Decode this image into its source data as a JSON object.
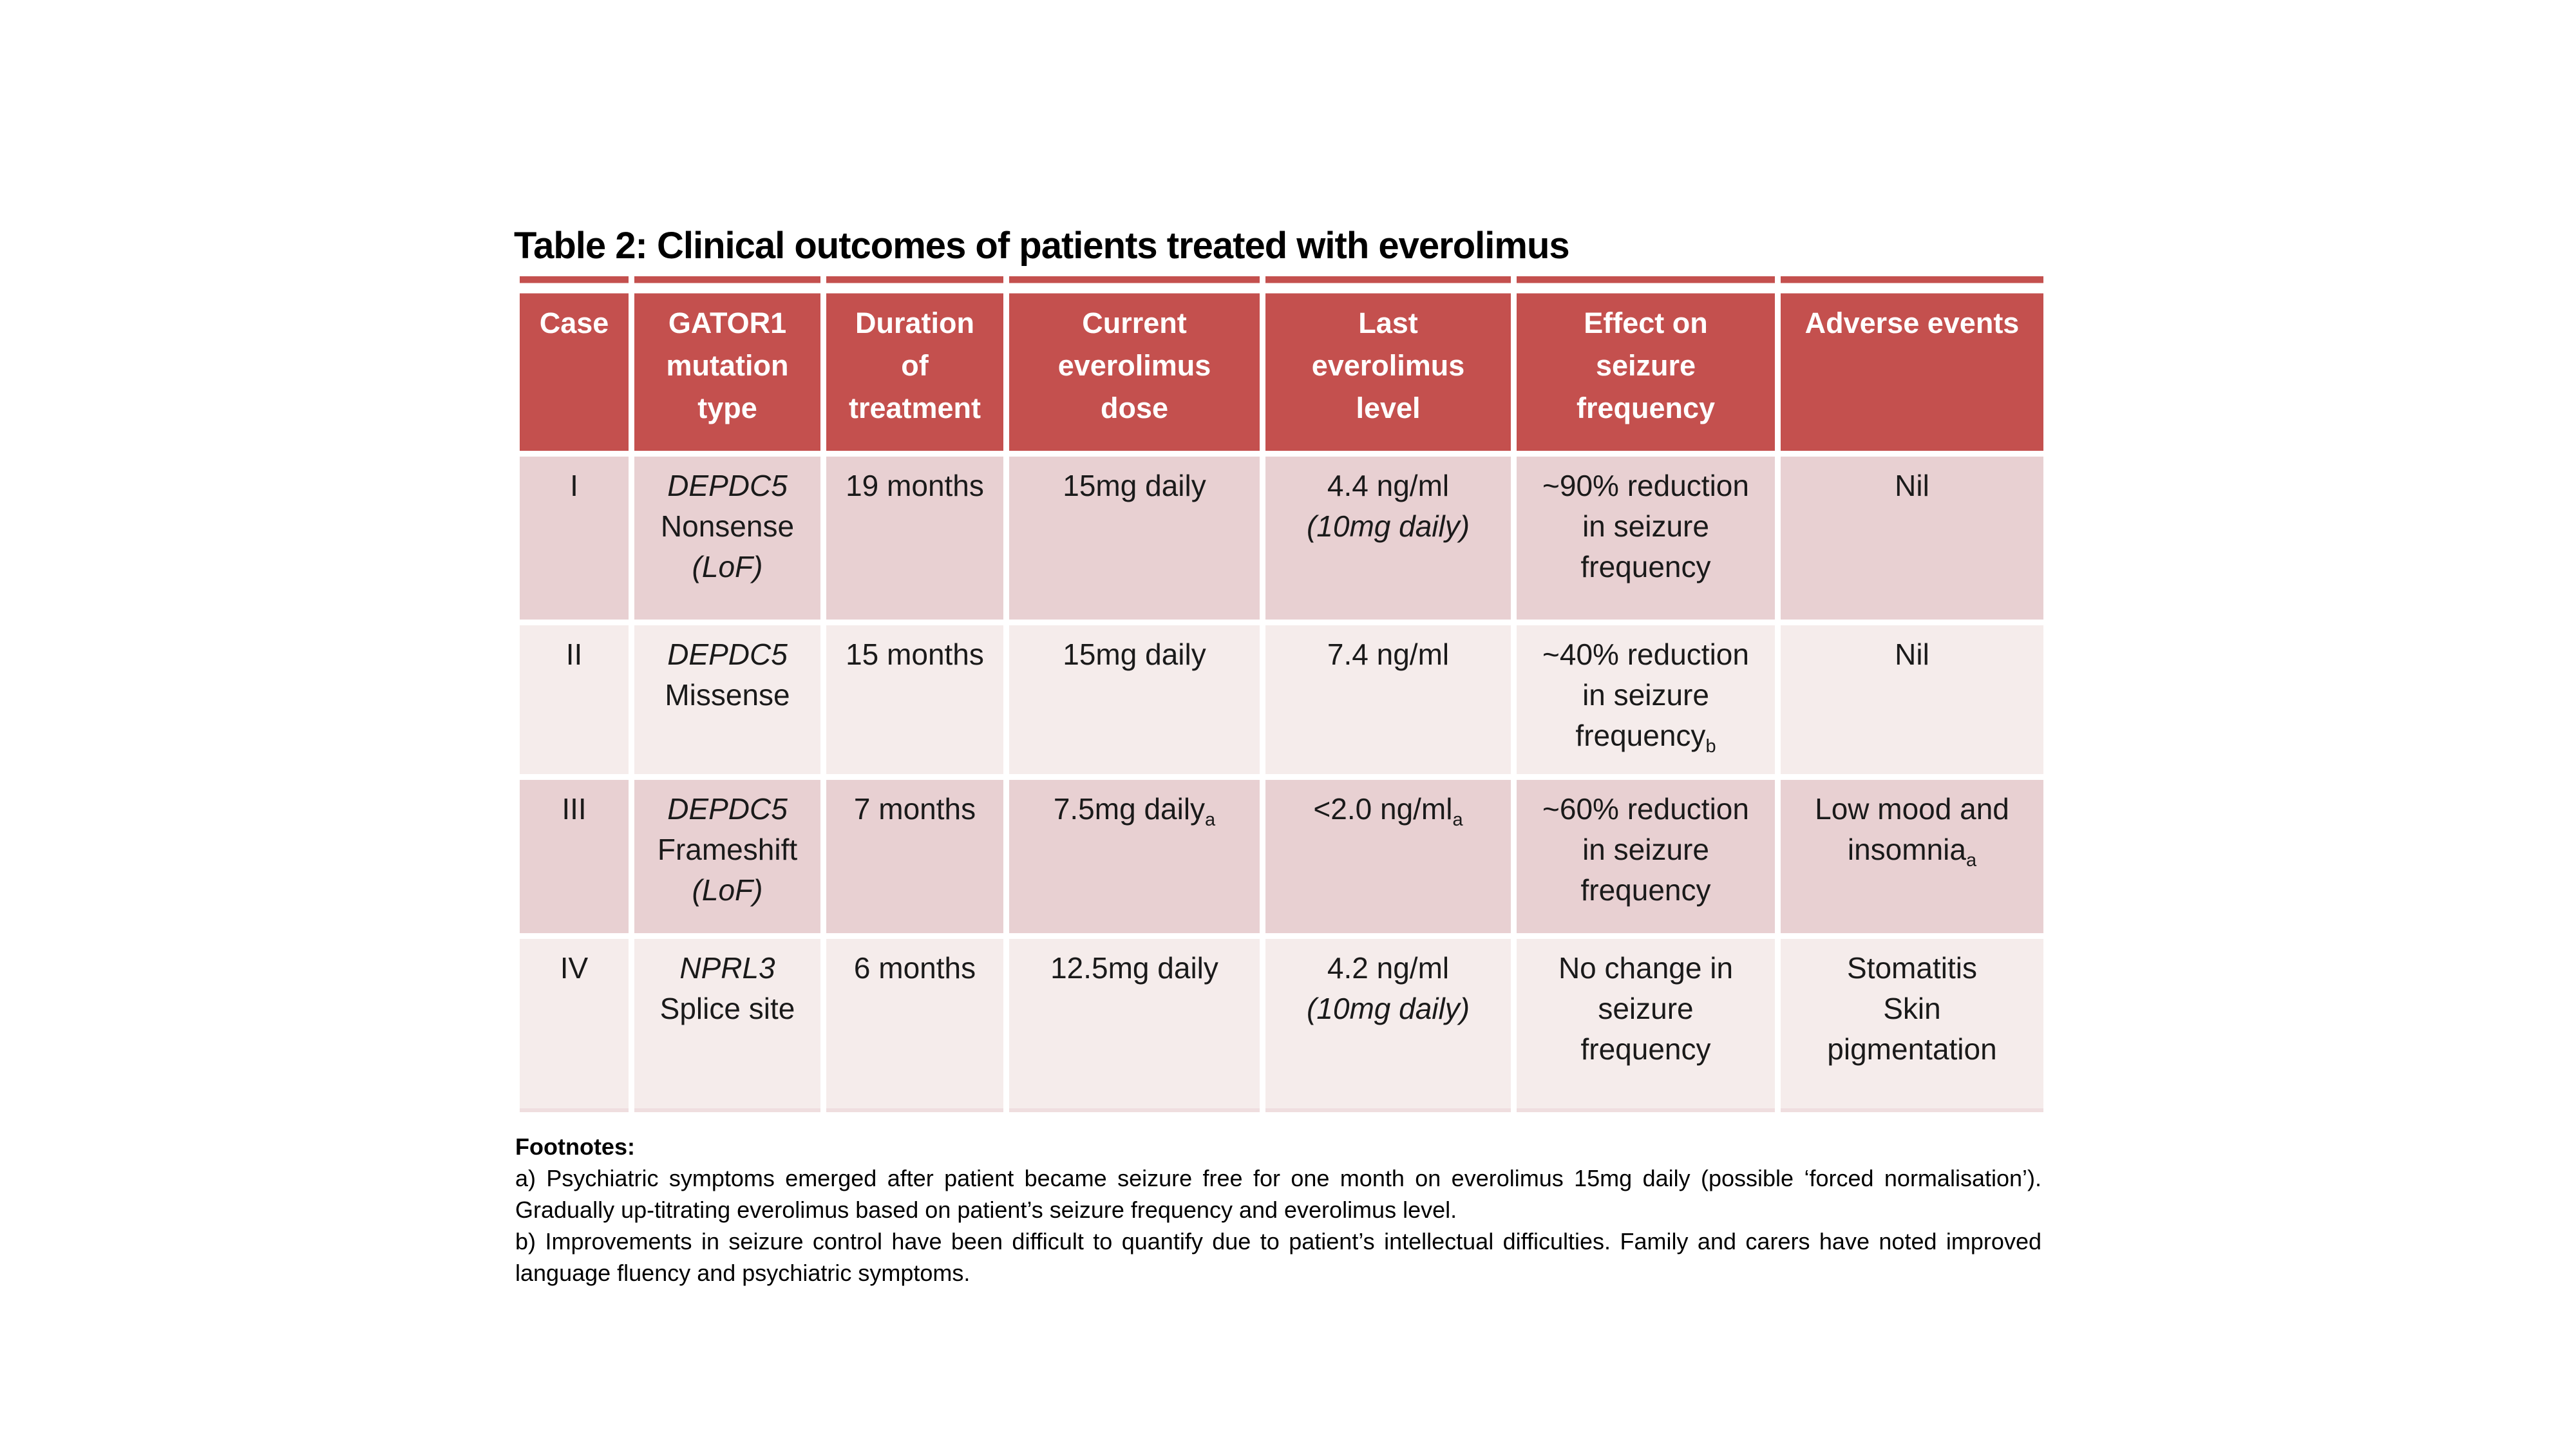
{
  "title": "Table 2: Clinical outcomes of patients treated with everolimus",
  "colors": {
    "header_bg": "#C4504E",
    "header_text": "#FFFFFF",
    "row_odd_bg": "#E8D0D2",
    "row_even_bg": "#F5ECEB",
    "body_text": "#1A1A1A",
    "grid_line": "#FFFFFF"
  },
  "table": {
    "headers": [
      "Case",
      "GATOR1\nmutation\ntype",
      "Duration\nof\ntreatment",
      "Current\neverolimus\ndose",
      "Last\neverolimus\nlevel",
      "Effect on\nseizure\nfrequency",
      "Adverse events"
    ],
    "rows": [
      [
        "I",
        [
          {
            "t": "DEPDC5",
            "i": true
          },
          {
            "br": true
          },
          {
            "t": "Nonsense"
          },
          {
            "br": true
          },
          {
            "t": "(LoF)",
            "i": true
          }
        ],
        "19 months",
        [
          {
            "t": "15mg daily"
          }
        ],
        [
          {
            "t": "4.4 ng/ml"
          },
          {
            "br": true
          },
          {
            "t": "(10mg daily)",
            "i": true
          }
        ],
        [
          {
            "t": "~90% reduction"
          },
          {
            "br": true
          },
          {
            "t": "in seizure"
          },
          {
            "br": true
          },
          {
            "t": "frequency"
          }
        ],
        [
          {
            "t": "Nil"
          }
        ]
      ],
      [
        "II",
        [
          {
            "t": "DEPDC5",
            "i": true
          },
          {
            "br": true
          },
          {
            "t": "Missense"
          }
        ],
        "15 months",
        [
          {
            "t": "15mg daily"
          }
        ],
        [
          {
            "t": "7.4 ng/ml"
          }
        ],
        [
          {
            "t": "~40% reduction"
          },
          {
            "br": true
          },
          {
            "t": "in seizure"
          },
          {
            "br": true
          },
          {
            "t": "frequency"
          },
          {
            "t": "b",
            "sub": true
          }
        ],
        [
          {
            "t": "Nil"
          }
        ]
      ],
      [
        "III",
        [
          {
            "t": "DEPDC5",
            "i": true
          },
          {
            "br": true
          },
          {
            "t": "Frameshift"
          },
          {
            "br": true
          },
          {
            "t": "(LoF)",
            "i": true
          }
        ],
        "7 months",
        [
          {
            "t": "7.5mg daily"
          },
          {
            "t": "a",
            "sub": true
          }
        ],
        [
          {
            "t": "<2.0 ng/ml"
          },
          {
            "t": "a",
            "sub": true
          }
        ],
        [
          {
            "t": "~60% reduction"
          },
          {
            "br": true
          },
          {
            "t": "in seizure"
          },
          {
            "br": true
          },
          {
            "t": "frequency"
          }
        ],
        [
          {
            "t": "Low mood and"
          },
          {
            "br": true
          },
          {
            "t": "insomnia"
          },
          {
            "t": "a",
            "sub": true
          }
        ]
      ],
      [
        "IV",
        [
          {
            "t": "NPRL3",
            "i": true
          },
          {
            "br": true
          },
          {
            "t": "Splice site"
          }
        ],
        "6 months",
        [
          {
            "t": "12.5mg daily"
          }
        ],
        [
          {
            "t": "4.2 ng/ml"
          },
          {
            "br": true
          },
          {
            "t": "(10mg daily)",
            "i": true
          }
        ],
        [
          {
            "t": "No change in"
          },
          {
            "br": true
          },
          {
            "t": "seizure"
          },
          {
            "br": true
          },
          {
            "t": "frequency"
          }
        ],
        [
          {
            "t": "Stomatitis"
          },
          {
            "br": true
          },
          {
            "t": "Skin"
          },
          {
            "br": true
          },
          {
            "t": "pigmentation"
          }
        ]
      ]
    ]
  },
  "footnotes": {
    "heading": "Footnotes:",
    "items": [
      "a) Psychiatric symptoms emerged after patient became seizure free for one month on everolimus 15mg daily (possible ‘forced normalisation’). Gradually up-titrating everolimus based on patient’s seizure frequency and everolimus level.",
      "b) Improvements in seizure control have been difficult to quantify due to patient’s intellectual difficulties. Family and carers have noted improved language fluency and psychiatric symptoms."
    ]
  }
}
